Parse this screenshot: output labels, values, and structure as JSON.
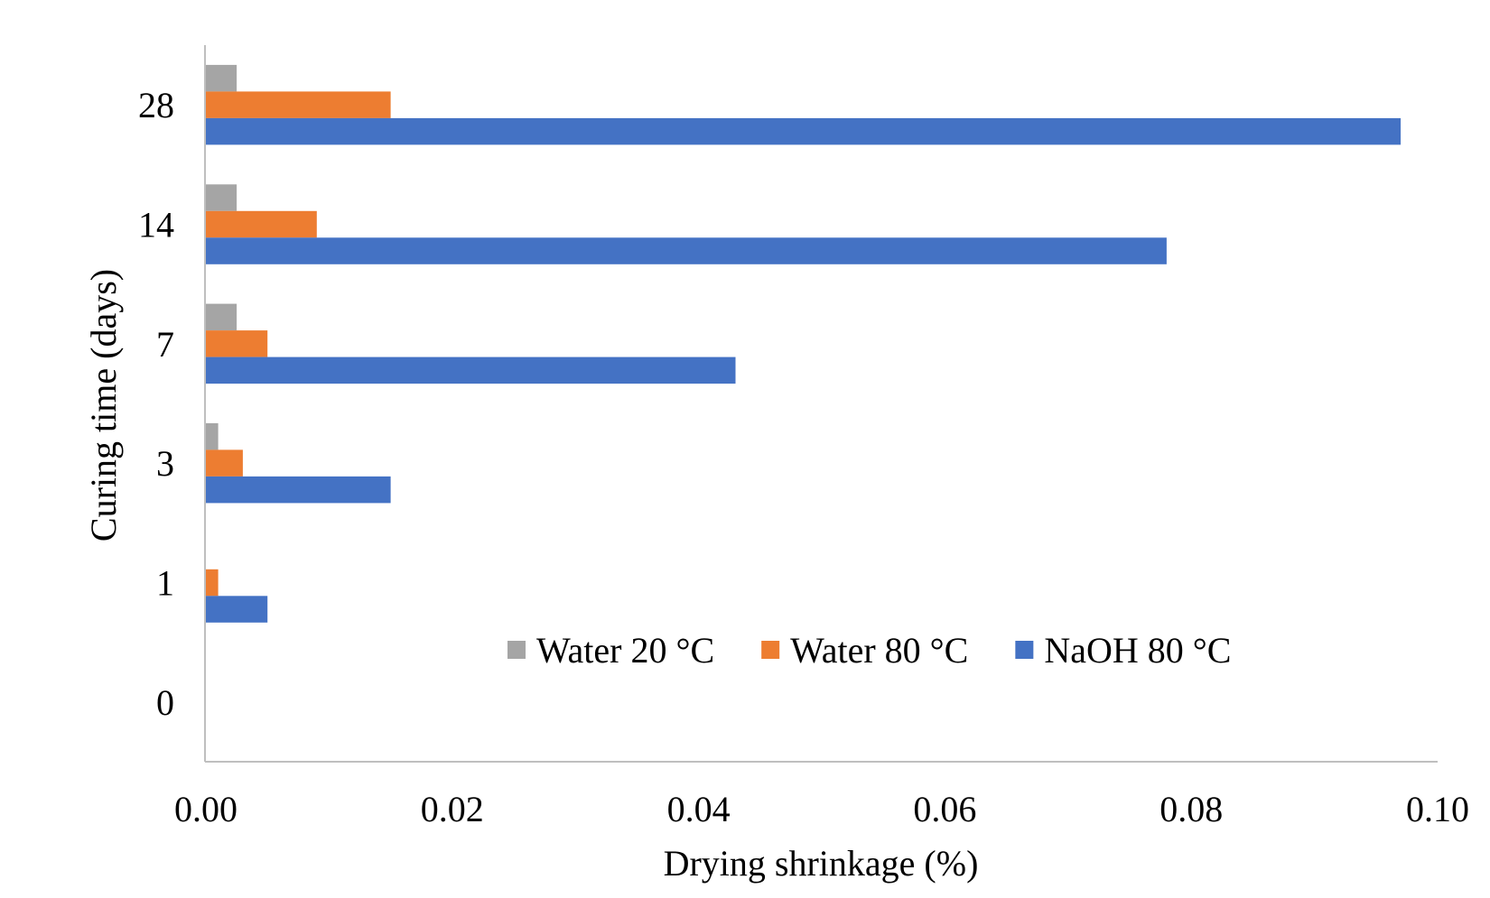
{
  "chart_data": {
    "type": "bar",
    "orientation": "horizontal",
    "title": "",
    "xlabel": "Drying shrinkage (%)",
    "ylabel": "Curing time (days)",
    "categories": [
      "0",
      "1",
      "3",
      "7",
      "14",
      "28"
    ],
    "xlim": [
      0,
      0.1
    ],
    "xticks": [
      "0.00",
      "0.02",
      "0.04",
      "0.06",
      "0.08",
      "0.10"
    ],
    "grid": false,
    "legend_position": "inside-bottom-right",
    "series": [
      {
        "name": "Water 20 °C",
        "color": "#A5A5A5",
        "values": [
          0,
          0,
          0.001,
          0.0025,
          0.0025,
          0.0025
        ]
      },
      {
        "name": "Water 80 °C",
        "color": "#ED7D31",
        "values": [
          0,
          0.001,
          0.003,
          0.005,
          0.009,
          0.015
        ]
      },
      {
        "name": "NaOH 80 °C",
        "color": "#4472C4",
        "values": [
          0,
          0.005,
          0.015,
          0.043,
          0.078,
          0.097
        ]
      }
    ]
  }
}
